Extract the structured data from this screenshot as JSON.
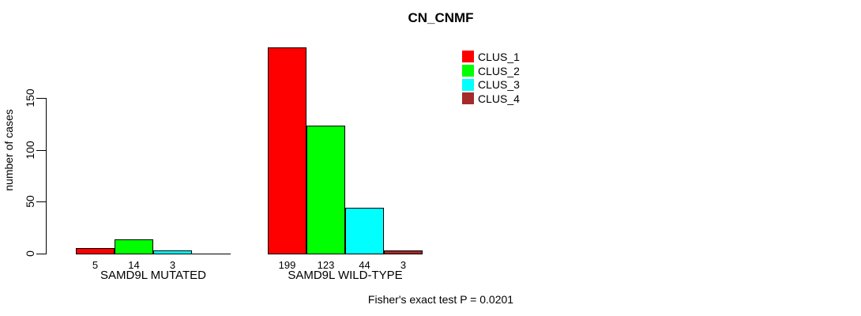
{
  "chart_data": {
    "type": "bar",
    "title": "CN_CNMF",
    "ylabel": "number of cases",
    "xlabel": "",
    "yticks": [
      0,
      50,
      100,
      150
    ],
    "ylim": [
      0,
      208
    ],
    "grid": false,
    "legend_position": "top-right",
    "legend": [
      {
        "label": "CLUS_1",
        "color": "#ff0000"
      },
      {
        "label": "CLUS_2",
        "color": "#00ff00"
      },
      {
        "label": "CLUS_3",
        "color": "#00ffff"
      },
      {
        "label": "CLUS_4",
        "color": "#a52a2a"
      }
    ],
    "groups": [
      {
        "label": "SAMD9L MUTATED",
        "values": [
          5,
          14,
          3,
          0
        ]
      },
      {
        "label": "SAMD9L WILD-TYPE",
        "values": [
          199,
          123,
          44,
          3
        ]
      }
    ],
    "annotation": "Fisher's exact test P = 0.0201"
  },
  "colors": {
    "background": "#ffffff",
    "axis": "#000000",
    "text": "#000000"
  }
}
